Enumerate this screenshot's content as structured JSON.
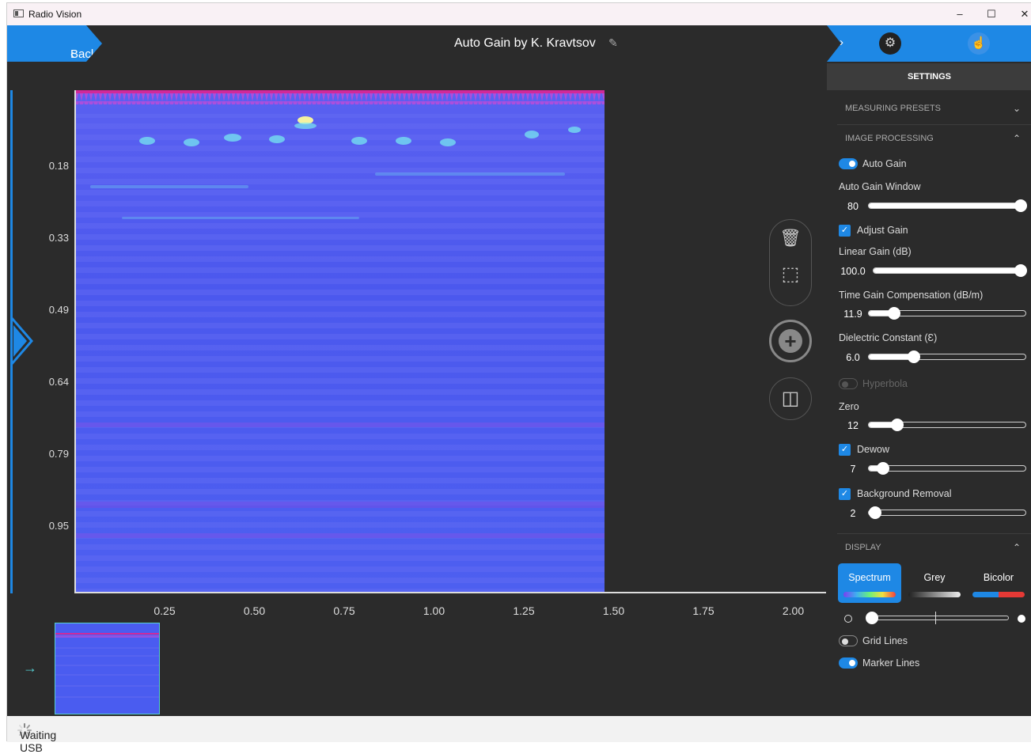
{
  "window": {
    "title": "Radio Vision",
    "controls": {
      "minimize": "–",
      "maximize": "☐",
      "close": "✕"
    }
  },
  "header": {
    "back_label": "Back",
    "back_chevron": "‹",
    "title": "Auto Gain by K. Kravtsov",
    "edit_icon": "✎",
    "panel_chevron": "›",
    "gear_icon": "⚙",
    "touch_icon": "☝"
  },
  "plot": {
    "y_ticks": [
      "0.18",
      "0.33",
      "0.49",
      "0.64",
      "0.79",
      "0.95"
    ],
    "x_ticks": [
      "0.25",
      "0.50",
      "0.75",
      "1.00",
      "1.25",
      "1.50",
      "1.75",
      "2.00"
    ]
  },
  "tools": {
    "delete_icon": "🗑",
    "select_icon": "⬚",
    "add_icon": "+",
    "split_icon": "◫"
  },
  "thumbnail": {
    "arrow_icon": "→"
  },
  "status": {
    "text": "Waiting USB"
  },
  "settings": {
    "header": "SETTINGS",
    "sections": {
      "measuring_presets": "MEASURING PRESETS",
      "image_processing": "IMAGE PROCESSING",
      "display": "DISPLAY"
    },
    "auto_gain": {
      "label": "Auto Gain",
      "on": true
    },
    "auto_gain_window": {
      "label": "Auto Gain Window",
      "value": "80",
      "level": 1.0
    },
    "adjust_gain": {
      "label": "Adjust Gain",
      "checked": true
    },
    "linear_gain": {
      "label": "Linear Gain (dB)",
      "value": "100.0",
      "level": 1.0
    },
    "time_gain": {
      "label": "Time Gain Compensation (dB/m)",
      "value": "11.9",
      "level": 0.16
    },
    "dielectric": {
      "label": "Dielectric Constant (Ɛ)",
      "value": "6.0",
      "level": 0.29
    },
    "hyperbola": {
      "label": "Hyperbola",
      "on": false
    },
    "zero": {
      "label": "Zero",
      "value": "12",
      "level": 0.18
    },
    "dewow": {
      "label": "Dewow",
      "checked": true,
      "value": "7",
      "level": 0.09
    },
    "background_removal": {
      "label": "Background Removal",
      "checked": true,
      "value": "2",
      "level": 0.04
    },
    "display": {
      "modes": [
        "Spectrum",
        "Grey",
        "Bicolor"
      ],
      "selected": "Spectrum",
      "contrast_level": 0.0
    },
    "grid_lines": {
      "label": "Grid Lines",
      "on": false
    },
    "marker_lines": {
      "label": "Marker Lines",
      "on": true
    }
  },
  "colors": {
    "accent": "#1e88e5",
    "plot_base": "#4a5cf0",
    "background": "#2b2b2b"
  }
}
